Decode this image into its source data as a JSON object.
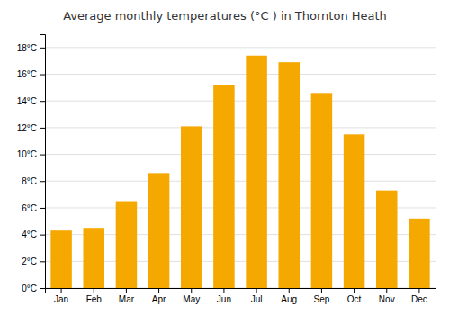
{
  "chart_data": {
    "type": "bar",
    "title": "Average monthly temperatures (°C ) in Thornton Heath",
    "categories": [
      "Jan",
      "Feb",
      "Mar",
      "Apr",
      "May",
      "Jun",
      "Jul",
      "Aug",
      "Sep",
      "Oct",
      "Nov",
      "Dec"
    ],
    "values": [
      4.3,
      4.5,
      6.5,
      8.6,
      12.1,
      15.2,
      17.4,
      16.9,
      14.6,
      11.5,
      7.3,
      5.2
    ],
    "color": "#F5A800",
    "ylim": [
      0,
      19
    ],
    "yticks": [
      {
        "value": 0,
        "label": "0°C"
      },
      {
        "value": 2,
        "label": "2°C"
      },
      {
        "value": 4,
        "label": "4°C"
      },
      {
        "value": 6,
        "label": "6°C"
      },
      {
        "value": 8,
        "label": "8°C"
      },
      {
        "value": 10,
        "label": "10°C"
      },
      {
        "value": 12,
        "label": "12°C"
      },
      {
        "value": 14,
        "label": "14°C"
      },
      {
        "value": 16,
        "label": "16°C"
      },
      {
        "value": 18,
        "label": "18°C"
      }
    ],
    "grid": true
  }
}
